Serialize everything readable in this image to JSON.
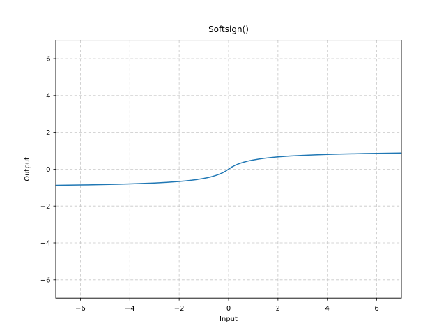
{
  "chart_data": {
    "type": "line",
    "title": "Softsign()",
    "xlabel": "Input",
    "ylabel": "Output",
    "xlim": [
      -7,
      7
    ],
    "ylim": [
      -7,
      7
    ],
    "xticks": [
      -6,
      -4,
      -2,
      0,
      2,
      4,
      6
    ],
    "yticks": [
      -6,
      -4,
      -2,
      0,
      2,
      4,
      6
    ],
    "grid": true,
    "legend_position": "none",
    "series": [
      {
        "name": "softsign",
        "color": "#1f77b4",
        "x": [
          -7,
          -6.5,
          -6,
          -5.5,
          -5,
          -4.5,
          -4,
          -3.5,
          -3,
          -2.5,
          -2,
          -1.75,
          -1.5,
          -1.25,
          -1,
          -0.875,
          -0.75,
          -0.625,
          -0.5,
          -0.375,
          -0.25,
          -0.125,
          0,
          0.125,
          0.25,
          0.375,
          0.5,
          0.625,
          0.75,
          0.875,
          1,
          1.25,
          1.5,
          1.75,
          2,
          2.5,
          3,
          3.5,
          4,
          4.5,
          5,
          5.5,
          6,
          6.5,
          7
        ],
        "y": [
          -0.875,
          -0.8667,
          -0.8571,
          -0.8462,
          -0.8333,
          -0.8182,
          -0.8,
          -0.7778,
          -0.75,
          -0.7143,
          -0.6667,
          -0.6364,
          -0.6,
          -0.5556,
          -0.5,
          -0.4667,
          -0.4286,
          -0.3846,
          -0.3333,
          -0.2727,
          -0.2,
          -0.1111,
          0,
          0.1111,
          0.2,
          0.2727,
          0.3333,
          0.3846,
          0.4286,
          0.4667,
          0.5,
          0.5556,
          0.6,
          0.6364,
          0.6667,
          0.7143,
          0.75,
          0.7778,
          0.8,
          0.8182,
          0.8333,
          0.8462,
          0.8571,
          0.8667,
          0.875
        ]
      }
    ]
  },
  "colors": {
    "line": "#1f77b4",
    "grid": "#c7c7c7",
    "spine": "#000000",
    "background": "#ffffff"
  }
}
